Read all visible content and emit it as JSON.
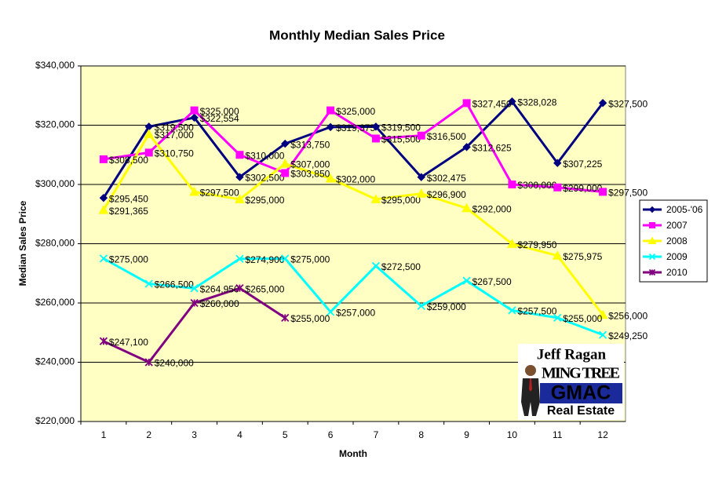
{
  "chart_data": {
    "type": "line",
    "title": "Monthly Median Sales Price",
    "x_label": "Month",
    "y_label": "Median Sales Price",
    "categories": [
      "1",
      "2",
      "3",
      "4",
      "5",
      "6",
      "7",
      "8",
      "9",
      "10",
      "11",
      "12"
    ],
    "ylim": [
      220000,
      340000
    ],
    "yticks": [
      {
        "value": 220000,
        "label": "$220,000"
      },
      {
        "value": 240000,
        "label": "$240,000"
      },
      {
        "value": 260000,
        "label": "$260,000"
      },
      {
        "value": 280000,
        "label": "$280,000"
      },
      {
        "value": 300000,
        "label": "$300,000"
      },
      {
        "value": 320000,
        "label": "$320,000"
      },
      {
        "value": 340000,
        "label": "$340,000"
      }
    ],
    "grid": true,
    "legend": "right",
    "background": "#ffffc4",
    "series": [
      {
        "name": "2005-'06",
        "color": "#000080",
        "marker": "diamond",
        "values": [
          295450,
          319500,
          322554,
          302500,
          313750,
          319375,
          319500,
          302475,
          312625,
          328028,
          307225,
          327500
        ],
        "value_labels": [
          "$295,450",
          "$319,500",
          "$322,554",
          "$302,500",
          "$313,750",
          "$319,375",
          "$319,500",
          "$302,475",
          "$312,625",
          "$328,028",
          "$307,225",
          "$327,500"
        ]
      },
      {
        "name": "2007",
        "color": "#ff00ff",
        "marker": "square",
        "values": [
          308500,
          310750,
          325000,
          310000,
          303850,
          325000,
          315500,
          316500,
          327450,
          300000,
          299000,
          297500
        ],
        "value_labels": [
          "$308,500",
          "$310,750",
          "$325,000",
          "$310,000",
          "$303,850",
          "$325,000",
          "$315,500",
          "$316,500",
          "$327,450",
          "$300,000",
          "$299,000",
          "$297,500"
        ]
      },
      {
        "name": "2008",
        "color": "#ffff00",
        "marker": "triangle",
        "values": [
          291365,
          317000,
          297500,
          295000,
          307000,
          302000,
          295000,
          296900,
          292000,
          279950,
          275975,
          256000
        ],
        "value_labels": [
          "$291,365",
          "$317,000",
          "$297,500",
          "$295,000",
          "$307,000",
          "$302,000",
          "$295,000",
          "$296,900",
          "$292,000",
          "$279,950",
          "$275,975",
          "$256,000"
        ]
      },
      {
        "name": "2009",
        "color": "#00ffff",
        "marker": "x",
        "values": [
          275000,
          266500,
          264950,
          274900,
          275000,
          257000,
          272500,
          259000,
          267500,
          257500,
          255000,
          249250
        ],
        "value_labels": [
          "$275,000",
          "$266,500",
          "$264,950",
          "$274,900",
          "$275,000",
          "$257,000",
          "$272,500",
          "$259,000",
          "$267,500",
          "$257,500",
          "$255,000",
          "$249,250"
        ]
      },
      {
        "name": "2010",
        "color": "#800080",
        "marker": "star",
        "values": [
          247100,
          240000,
          260000,
          265000,
          255000,
          null,
          null,
          null,
          null,
          null,
          null,
          null
        ],
        "value_labels": [
          "$247,100",
          "$240,000",
          "$260,000",
          "$265,000",
          "$255,000",
          null,
          null,
          null,
          null,
          null,
          null,
          null
        ]
      }
    ],
    "logo_texts": [
      "Jeff Ragan",
      "MING TREE",
      "GMAC",
      "Real Estate"
    ]
  }
}
